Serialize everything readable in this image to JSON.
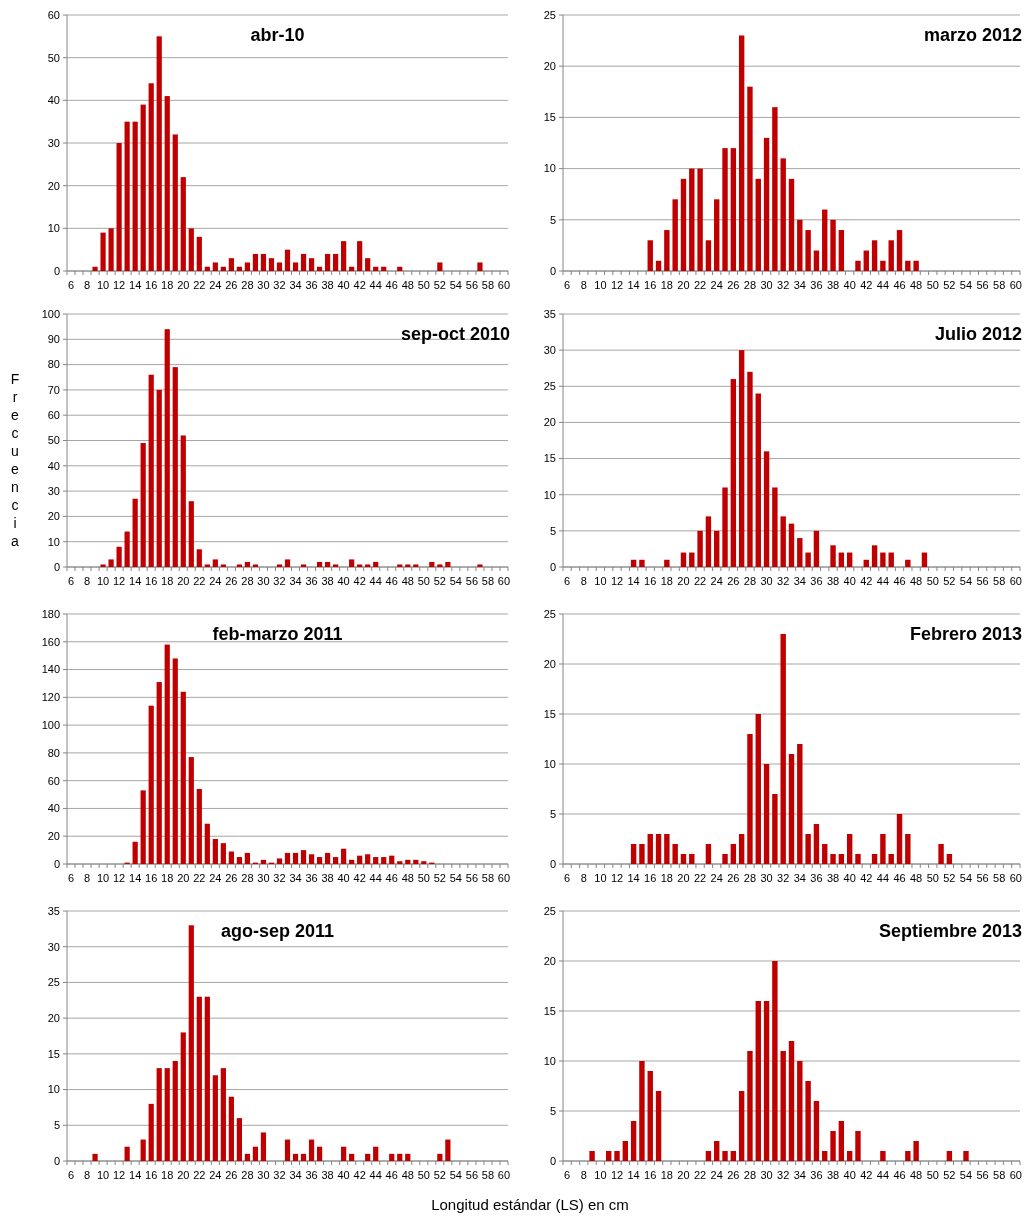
{
  "chart_data": [
    {
      "type": "bar",
      "title": "abr-10",
      "categories": [
        "6",
        null,
        "8",
        null,
        "10",
        null,
        "12",
        null,
        "14",
        null,
        "16",
        null,
        "18",
        null,
        "20",
        null,
        "22",
        null,
        "24",
        null,
        "26",
        null,
        "28",
        null,
        "30",
        null,
        "32",
        null,
        "34",
        null,
        "36",
        null,
        "38",
        null,
        "40",
        null,
        "42",
        null,
        "44",
        null,
        "46",
        null,
        "48",
        null,
        "50",
        null,
        "52",
        null,
        "54",
        null,
        "56",
        null,
        "58",
        null,
        "60"
      ],
      "values": [
        0,
        0,
        0,
        1,
        9,
        10,
        30,
        35,
        35,
        39,
        44,
        55,
        41,
        32,
        22,
        10,
        8,
        1,
        2,
        1,
        3,
        1,
        2,
        4,
        4,
        3,
        2,
        5,
        2,
        4,
        3,
        1,
        4,
        4,
        7,
        1,
        7,
        3,
        1,
        1,
        0,
        1,
        0,
        0,
        0,
        0,
        2,
        0,
        0,
        0,
        0,
        2,
        0,
        0,
        0
      ],
      "color": "#c00000",
      "ylim": [
        0,
        60
      ],
      "yticks": [
        0,
        10,
        20,
        30,
        40,
        50,
        60
      ],
      "grid": "y"
    },
    {
      "type": "bar",
      "title": "marzo 2012",
      "categories": [
        "6",
        null,
        "8",
        null,
        "10",
        null,
        "12",
        null,
        "14",
        null,
        "16",
        null,
        "18",
        null,
        "20",
        null,
        "22",
        null,
        "24",
        null,
        "26",
        null,
        "28",
        null,
        "30",
        null,
        "32",
        null,
        "34",
        null,
        "36",
        null,
        "38",
        null,
        "40",
        null,
        "42",
        null,
        "44",
        null,
        "46",
        null,
        "48",
        null,
        "50",
        null,
        "52",
        null,
        "54",
        null,
        "56",
        null,
        "58",
        null,
        "60"
      ],
      "values": [
        0,
        0,
        0,
        0,
        0,
        0,
        0,
        0,
        0,
        0,
        3,
        1,
        4,
        7,
        9,
        10,
        10,
        3,
        7,
        12,
        12,
        23,
        18,
        9,
        13,
        16,
        11,
        9,
        5,
        4,
        2,
        6,
        5,
        4,
        0,
        1,
        2,
        3,
        1,
        3,
        4,
        1,
        1,
        0,
        0,
        0,
        0,
        0,
        0,
        0,
        0,
        0,
        0,
        0,
        0
      ],
      "color": "#c00000",
      "ylim": [
        0,
        25
      ],
      "yticks": [
        0,
        5,
        10,
        15,
        20,
        25
      ],
      "grid": "y"
    },
    {
      "type": "bar",
      "title": "sep-oct 2010",
      "ylabel": "Frecuencia",
      "categories": [
        "6",
        null,
        "8",
        null,
        "10",
        null,
        "12",
        null,
        "14",
        null,
        "16",
        null,
        "18",
        null,
        "20",
        null,
        "22",
        null,
        "24",
        null,
        "26",
        null,
        "28",
        null,
        "30",
        null,
        "32",
        null,
        "34",
        null,
        "36",
        null,
        "38",
        null,
        "40",
        null,
        "42",
        null,
        "44",
        null,
        "46",
        null,
        "48",
        null,
        "50",
        null,
        "52",
        null,
        "54",
        null,
        "56",
        null,
        "58",
        null,
        "60"
      ],
      "values": [
        0,
        0,
        0,
        0,
        1,
        3,
        8,
        14,
        27,
        49,
        76,
        70,
        94,
        79,
        52,
        26,
        7,
        1,
        3,
        1,
        0,
        1,
        2,
        1,
        0,
        0,
        1,
        3,
        0,
        1,
        0,
        2,
        2,
        1,
        0,
        3,
        1,
        1,
        2,
        0,
        0,
        1,
        1,
        1,
        0,
        2,
        1,
        2,
        0,
        0,
        0,
        1,
        0,
        0,
        0
      ],
      "color": "#c00000",
      "ylim": [
        0,
        100
      ],
      "yticks": [
        0,
        10,
        20,
        30,
        40,
        50,
        60,
        70,
        80,
        90,
        100
      ],
      "grid": "y"
    },
    {
      "type": "bar",
      "title": "Julio 2012",
      "categories": [
        "6",
        null,
        "8",
        null,
        "10",
        null,
        "12",
        null,
        "14",
        null,
        "16",
        null,
        "18",
        null,
        "20",
        null,
        "22",
        null,
        "24",
        null,
        "26",
        null,
        "28",
        null,
        "30",
        null,
        "32",
        null,
        "34",
        null,
        "36",
        null,
        "38",
        null,
        "40",
        null,
        "42",
        null,
        "44",
        null,
        "46",
        null,
        "48",
        null,
        "50",
        null,
        "52",
        null,
        "54",
        null,
        "56",
        null,
        "58",
        null,
        "60"
      ],
      "values": [
        0,
        0,
        0,
        0,
        0,
        0,
        0,
        0,
        1,
        1,
        0,
        0,
        1,
        0,
        2,
        2,
        5,
        7,
        5,
        11,
        26,
        30,
        27,
        24,
        16,
        11,
        7,
        6,
        4,
        2,
        5,
        0,
        3,
        2,
        2,
        0,
        1,
        3,
        2,
        2,
        0,
        1,
        0,
        2,
        0,
        0,
        0,
        0,
        0,
        0,
        0,
        0,
        0,
        0,
        0
      ],
      "color": "#c00000",
      "ylim": [
        0,
        35
      ],
      "yticks": [
        0,
        5,
        10,
        15,
        20,
        25,
        30,
        35
      ],
      "grid": "y"
    },
    {
      "type": "bar",
      "title": "feb-marzo 2011",
      "categories": [
        "6",
        null,
        "8",
        null,
        "10",
        null,
        "12",
        null,
        "14",
        null,
        "16",
        null,
        "18",
        null,
        "20",
        null,
        "22",
        null,
        "24",
        null,
        "26",
        null,
        "28",
        null,
        "30",
        null,
        "32",
        null,
        "34",
        null,
        "36",
        null,
        "38",
        null,
        "40",
        null,
        "42",
        null,
        "44",
        null,
        "46",
        null,
        "48",
        null,
        "50",
        null,
        "52",
        null,
        "54",
        null,
        "56",
        null,
        "58",
        null,
        "60"
      ],
      "values": [
        0,
        0,
        0,
        0,
        0,
        0,
        0,
        1,
        16,
        53,
        114,
        131,
        158,
        148,
        124,
        77,
        54,
        29,
        18,
        15,
        9,
        5,
        8,
        1,
        3,
        1,
        4,
        8,
        8,
        10,
        7,
        5,
        8,
        5,
        11,
        3,
        6,
        7,
        5,
        5,
        6,
        2,
        3,
        3,
        2,
        1,
        0,
        0,
        0,
        0,
        0,
        0,
        0,
        0,
        0
      ],
      "color": "#c00000",
      "ylim": [
        0,
        180
      ],
      "yticks": [
        0,
        20,
        40,
        60,
        80,
        100,
        120,
        140,
        160,
        180
      ],
      "grid": "y"
    },
    {
      "type": "bar",
      "title": "Febrero 2013",
      "categories": [
        "6",
        null,
        "8",
        null,
        "10",
        null,
        "12",
        null,
        "14",
        null,
        "16",
        null,
        "18",
        null,
        "20",
        null,
        "22",
        null,
        "24",
        null,
        "26",
        null,
        "28",
        null,
        "30",
        null,
        "32",
        null,
        "34",
        null,
        "36",
        null,
        "38",
        null,
        "40",
        null,
        "42",
        null,
        "44",
        null,
        "46",
        null,
        "48",
        null,
        "50",
        null,
        "52",
        null,
        "54",
        null,
        "56",
        null,
        "58",
        null,
        "60"
      ],
      "values": [
        0,
        0,
        0,
        0,
        0,
        0,
        0,
        0,
        2,
        2,
        3,
        3,
        3,
        2,
        1,
        1,
        0,
        2,
        0,
        1,
        2,
        3,
        13,
        15,
        10,
        7,
        23,
        11,
        12,
        3,
        4,
        2,
        1,
        1,
        3,
        1,
        0,
        1,
        3,
        1,
        5,
        3,
        0,
        0,
        0,
        2,
        1,
        0,
        0,
        0,
        0,
        0,
        0,
        0,
        0
      ],
      "color": "#c00000",
      "ylim": [
        0,
        25
      ],
      "yticks": [
        0,
        5,
        10,
        15,
        20,
        25
      ],
      "grid": "y"
    },
    {
      "type": "bar",
      "title": "ago-sep 2011",
      "categories": [
        "6",
        null,
        "8",
        null,
        "10",
        null,
        "12",
        null,
        "14",
        null,
        "16",
        null,
        "18",
        null,
        "20",
        null,
        "22",
        null,
        "24",
        null,
        "26",
        null,
        "28",
        null,
        "30",
        null,
        "32",
        null,
        "34",
        null,
        "36",
        null,
        "38",
        null,
        "40",
        null,
        "42",
        null,
        "44",
        null,
        "46",
        null,
        "48",
        null,
        "50",
        null,
        "52",
        null,
        "54",
        null,
        "56",
        null,
        "58",
        null,
        "60"
      ],
      "values": [
        0,
        0,
        0,
        1,
        0,
        0,
        0,
        2,
        0,
        3,
        8,
        13,
        13,
        14,
        18,
        33,
        23,
        23,
        12,
        13,
        9,
        6,
        1,
        2,
        4,
        0,
        0,
        3,
        1,
        1,
        3,
        2,
        0,
        0,
        2,
        1,
        0,
        1,
        2,
        0,
        1,
        1,
        1,
        0,
        0,
        0,
        1,
        3,
        0,
        0,
        0,
        0,
        0,
        0,
        0
      ],
      "color": "#c00000",
      "ylim": [
        0,
        35
      ],
      "yticks": [
        0,
        5,
        10,
        15,
        20,
        25,
        30,
        35
      ],
      "grid": "y"
    },
    {
      "type": "bar",
      "title": "Septiembre 2013",
      "xlabel": "Longitud estándar (LS) en cm",
      "categories": [
        "6",
        null,
        "8",
        null,
        "10",
        null,
        "12",
        null,
        "14",
        null,
        "16",
        null,
        "18",
        null,
        "20",
        null,
        "22",
        null,
        "24",
        null,
        "26",
        null,
        "28",
        null,
        "30",
        null,
        "32",
        null,
        "34",
        null,
        "36",
        null,
        "38",
        null,
        "40",
        null,
        "42",
        null,
        "44",
        null,
        "46",
        null,
        "48",
        null,
        "50",
        null,
        "52",
        null,
        "54",
        null,
        "56",
        null,
        "58",
        null,
        "60"
      ],
      "values": [
        0,
        0,
        0,
        1,
        0,
        1,
        1,
        2,
        4,
        10,
        9,
        7,
        0,
        0,
        0,
        0,
        0,
        1,
        2,
        1,
        1,
        7,
        11,
        16,
        16,
        20,
        11,
        12,
        10,
        8,
        6,
        1,
        3,
        4,
        1,
        3,
        0,
        0,
        1,
        0,
        0,
        1,
        2,
        0,
        0,
        0,
        1,
        0,
        1,
        0,
        0,
        0,
        0,
        0,
        0
      ],
      "color": "#c00000",
      "ylim": [
        0,
        25
      ],
      "yticks": [
        0,
        5,
        10,
        15,
        20,
        25
      ],
      "grid": "y"
    }
  ]
}
